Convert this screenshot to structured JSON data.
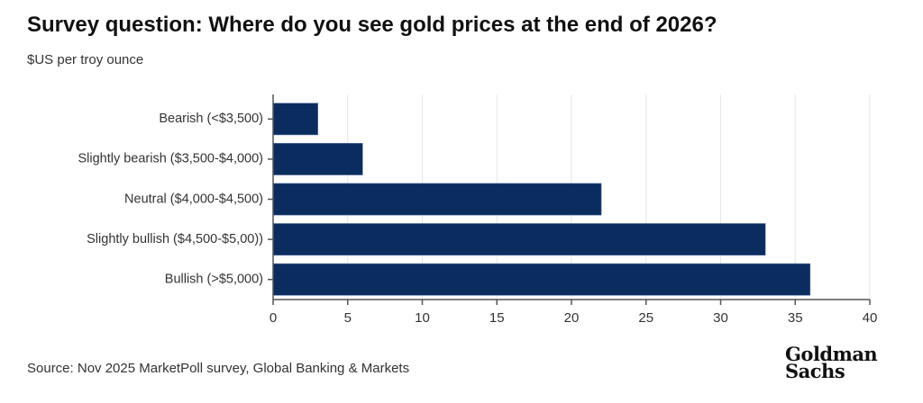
{
  "chart_data": {
    "type": "bar",
    "orientation": "horizontal",
    "title": "Survey question: Where do you see gold prices at the end of 2026?",
    "subtitle": "$US per troy ounce",
    "categories": [
      "Bearish (<$3,500)",
      "Slightly bearish ($3,500-$4,000)",
      "Neutral ($4,000-$4,500)",
      "Slightly bullish ($4,500-$5,00))",
      "Bullish (>$5,000)"
    ],
    "values": [
      3,
      6,
      22,
      33,
      36
    ],
    "xlabel": "",
    "ylabel": "",
    "xlim": [
      0,
      40
    ],
    "xticks": [
      0,
      5,
      10,
      15,
      20,
      25,
      30,
      35,
      40
    ],
    "grid": true,
    "bar_color": "#0b2c5e",
    "source": "Source: Nov 2025 MarketPoll survey, Global Banking & Markets"
  },
  "branding": {
    "logo_line1": "Goldman",
    "logo_line2": "Sachs"
  }
}
